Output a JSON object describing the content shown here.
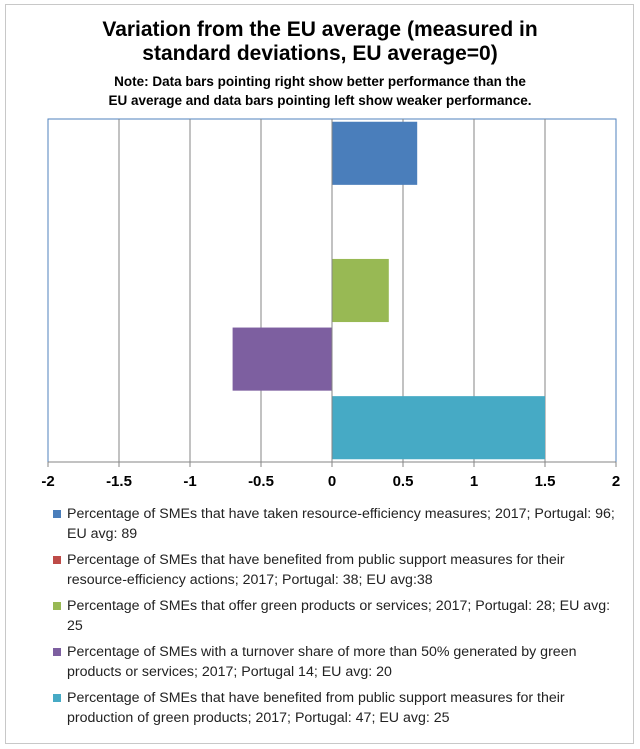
{
  "chart_data": {
    "type": "bar",
    "orientation": "horizontal",
    "title": "Variation from the EU average (measured in standard deviations, EU average=0)",
    "title_lines": [
      "Variation from the EU average (measured in",
      "standard deviations, EU average=0)"
    ],
    "note_lines": [
      "Note: Data bars pointing right show better performance than the",
      "EU average and data bars pointing left show weaker performance."
    ],
    "xlim": [
      -2,
      2
    ],
    "x_ticks": [
      "-2",
      "-1.5",
      "-1",
      "-0.5",
      "0",
      "0.5",
      "1",
      "1.5",
      "2"
    ],
    "grid": true,
    "legend_position": "bottom",
    "series": [
      {
        "name": "Percentage of SMEs that have taken resource-efficiency measures; 2017; Portugal: 96; EU avg: 89",
        "value": 0.6,
        "color": "#4a7ebb"
      },
      {
        "name": "Percentage of SMEs that have benefited from public support measures for their resource-efficiency actions; 2017; Portugal: 38; EU avg:38",
        "value": 0,
        "color": "#be4b48"
      },
      {
        "name": "Percentage of SMEs that offer green products or services; 2017; Portugal: 28; EU avg: 25",
        "value": 0.4,
        "color": "#98b954"
      },
      {
        "name": "Percentage of SMEs with a turnover share of more than 50% generated by green products or services; 2017; Portugal 14; EU avg: 20",
        "value": -0.7,
        "color": "#7d5fa0"
      },
      {
        "name": "Percentage of SMEs that have benefited from public support measures for their production of green products; 2017; Portugal: 47; EU avg: 25",
        "value": 1.5,
        "color": "#46aac5"
      }
    ]
  }
}
